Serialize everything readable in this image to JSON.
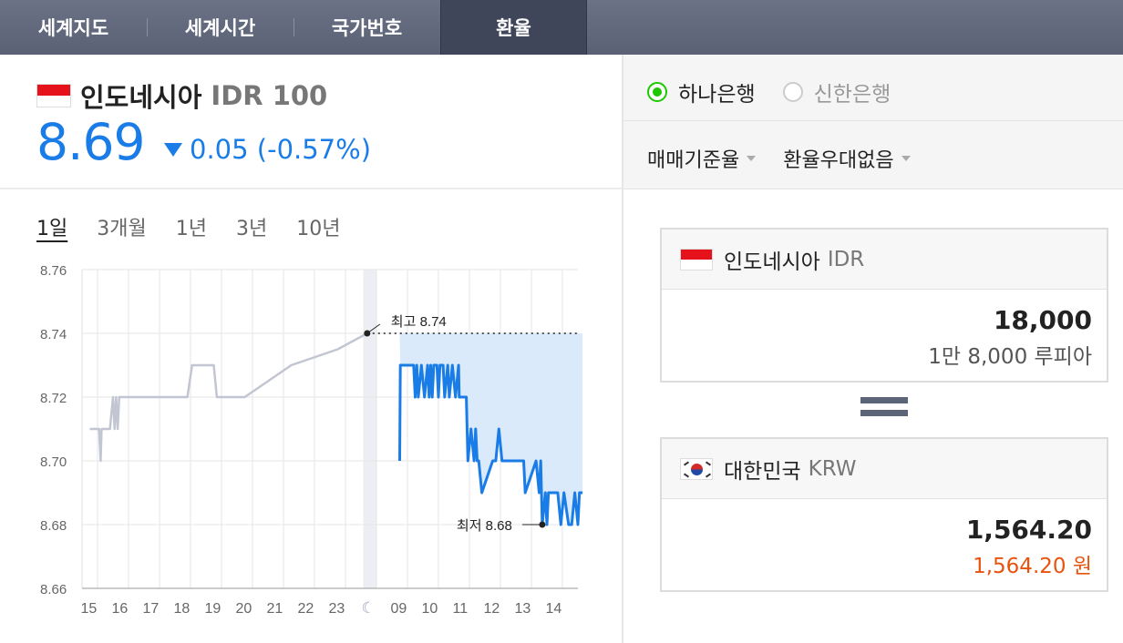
{
  "tabs": [
    {
      "label": "세계지도",
      "active": false
    },
    {
      "label": "세계시간",
      "active": false
    },
    {
      "label": "국가번호",
      "active": false
    },
    {
      "label": "환율",
      "active": true
    }
  ],
  "currency": {
    "name": "인도네시아",
    "code": "IDR 100",
    "rate": "8.69",
    "change": "0.05 (-0.57%)",
    "direction": "down",
    "color": "#1a7ce6"
  },
  "periods": [
    {
      "label": "1일",
      "selected": true
    },
    {
      "label": "3개월",
      "selected": false
    },
    {
      "label": "1년",
      "selected": false
    },
    {
      "label": "3년",
      "selected": false
    },
    {
      "label": "10년",
      "selected": false
    }
  ],
  "chart_data": {
    "type": "line",
    "ylim": [
      8.66,
      8.76
    ],
    "y_ticks": [
      "8.76",
      "8.74",
      "8.72",
      "8.70",
      "8.68",
      "8.66"
    ],
    "x_ticks": [
      "15",
      "16",
      "17",
      "18",
      "19",
      "20",
      "21",
      "22",
      "23",
      "moon-icon",
      "09",
      "10",
      "11",
      "12",
      "13",
      "14"
    ],
    "high_label": "최고 8.74",
    "low_label": "최저 8.68",
    "series": [
      {
        "period": "previous",
        "color": "#c2c5d2",
        "x": [
          0.0,
          0.3,
          0.35,
          0.38,
          0.45,
          0.6,
          0.65,
          0.75,
          0.8,
          0.85,
          0.9,
          0.95,
          1.0,
          2.0,
          3.0,
          3.15,
          3.3,
          3.6,
          4.0,
          4.1,
          4.3,
          4.5,
          5.0,
          6.5,
          8.0,
          8.95
        ],
        "values": [
          8.71,
          8.71,
          8.7,
          8.71,
          8.71,
          8.71,
          8.71,
          8.72,
          8.71,
          8.72,
          8.71,
          8.72,
          8.72,
          8.72,
          8.72,
          8.72,
          8.73,
          8.73,
          8.73,
          8.72,
          8.72,
          8.72,
          8.72,
          8.73,
          8.735,
          8.74
        ]
      },
      {
        "period": "today",
        "color": "#1a7ce6",
        "fill": "#dbeafb",
        "x": [
          10.0,
          10.02,
          10.25,
          10.45,
          10.5,
          10.55,
          10.6,
          10.7,
          10.8,
          10.9,
          10.95,
          11.0,
          11.05,
          11.1,
          11.2,
          11.25,
          11.3,
          11.4,
          11.45,
          11.55,
          11.6,
          11.7,
          11.8,
          11.9,
          11.92,
          12.0,
          12.05,
          12.15,
          12.2,
          12.3,
          12.4,
          12.45,
          12.5,
          12.55,
          12.65,
          13.0,
          13.1,
          13.2,
          13.3,
          13.7,
          13.9,
          14.0,
          14.05,
          14.4,
          14.5,
          14.55,
          14.6,
          14.7,
          14.75,
          14.8,
          14.85,
          14.9,
          15.0,
          15.1,
          15.2,
          15.3,
          15.45,
          15.55,
          15.65,
          15.75,
          15.8,
          15.9
        ],
        "values": [
          8.7,
          8.73,
          8.73,
          8.73,
          8.72,
          8.73,
          8.72,
          8.73,
          8.72,
          8.73,
          8.72,
          8.73,
          8.72,
          8.73,
          8.73,
          8.72,
          8.73,
          8.73,
          8.72,
          8.73,
          8.72,
          8.73,
          8.72,
          8.73,
          8.72,
          8.72,
          8.72,
          8.72,
          8.7,
          8.71,
          8.7,
          8.71,
          8.7,
          8.7,
          8.69,
          8.7,
          8.7,
          8.71,
          8.7,
          8.7,
          8.7,
          8.7,
          8.69,
          8.7,
          8.69,
          8.7,
          8.68,
          8.69,
          8.68,
          8.69,
          8.69,
          8.69,
          8.69,
          8.69,
          8.68,
          8.69,
          8.68,
          8.68,
          8.69,
          8.68,
          8.69,
          8.69
        ]
      }
    ]
  },
  "banks": [
    {
      "label": "하나은행",
      "selected": true
    },
    {
      "label": "신한은행",
      "selected": false
    }
  ],
  "selects": [
    {
      "label": "매매기준율"
    },
    {
      "label": "환율우대없음"
    }
  ],
  "converter": {
    "from": {
      "name": "인도네시아",
      "code": "IDR",
      "amount": "18,000",
      "sub": "1만 8,000 루피아"
    },
    "to": {
      "name": "대한민국",
      "code": "KRW",
      "amount": "1,564.20",
      "sub": "1,564.20 원",
      "sub_color": "#e8530e"
    }
  }
}
